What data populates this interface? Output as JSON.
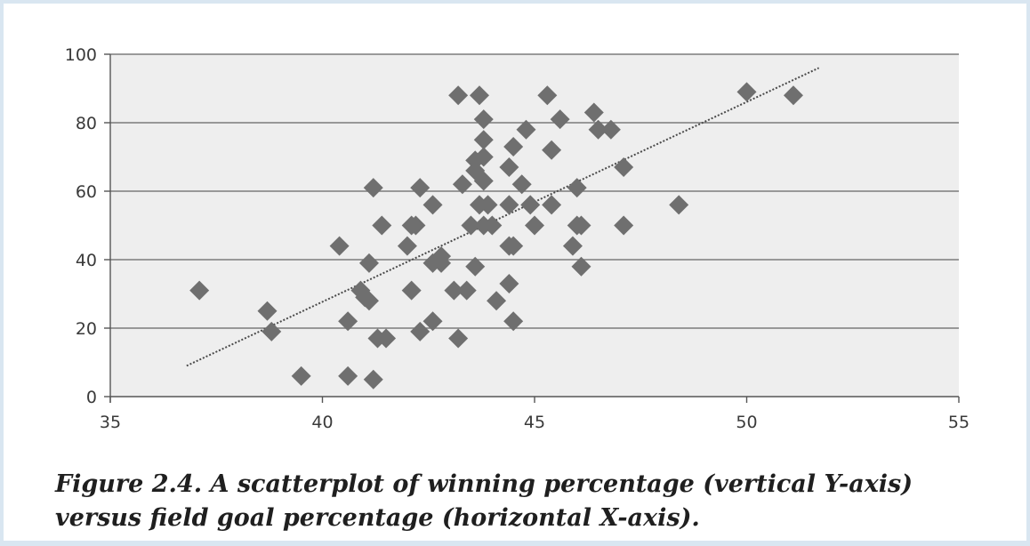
{
  "caption": "Figure 2.4.  A scatterplot of winning percentage (vertical Y-axis) versus field goal percentage (horizontal X-axis).",
  "chart_data": {
    "type": "scatter",
    "xlim": [
      35,
      55
    ],
    "ylim": [
      0,
      100
    ],
    "x_ticks": [
      35,
      40,
      45,
      50,
      55
    ],
    "y_ticks": [
      0,
      20,
      40,
      60,
      80,
      100
    ],
    "grid": "horizontal",
    "colors": {
      "marker": "#6f6f6f",
      "plot_bg": "#eeeeee",
      "grid": "#7b7b7b",
      "trendline": "#4a4a4a"
    },
    "trendline": {
      "x": [
        36.8,
        51.7
      ],
      "y": [
        9,
        96
      ]
    },
    "series": [
      {
        "points": [
          [
            37.1,
            31
          ],
          [
            38.7,
            25
          ],
          [
            38.8,
            19
          ],
          [
            39.5,
            6
          ],
          [
            40.4,
            44
          ],
          [
            40.6,
            22
          ],
          [
            40.6,
            6
          ],
          [
            40.9,
            31
          ],
          [
            41.0,
            29
          ],
          [
            41.1,
            28
          ],
          [
            41.1,
            39
          ],
          [
            41.2,
            61
          ],
          [
            41.2,
            5
          ],
          [
            41.3,
            17
          ],
          [
            41.4,
            50
          ],
          [
            41.5,
            17
          ],
          [
            42.0,
            44
          ],
          [
            42.1,
            50
          ],
          [
            42.1,
            31
          ],
          [
            42.2,
            50
          ],
          [
            42.3,
            61
          ],
          [
            42.3,
            19
          ],
          [
            42.6,
            56
          ],
          [
            42.6,
            22
          ],
          [
            42.6,
            39
          ],
          [
            42.8,
            41
          ],
          [
            42.8,
            39
          ],
          [
            43.1,
            31
          ],
          [
            43.2,
            17
          ],
          [
            43.2,
            88
          ],
          [
            43.3,
            62
          ],
          [
            43.4,
            31
          ],
          [
            43.5,
            50
          ],
          [
            43.6,
            69
          ],
          [
            43.6,
            66
          ],
          [
            43.6,
            38
          ],
          [
            43.7,
            56
          ],
          [
            43.7,
            88
          ],
          [
            43.8,
            50
          ],
          [
            43.8,
            70
          ],
          [
            43.8,
            81
          ],
          [
            43.8,
            75
          ],
          [
            43.8,
            63
          ],
          [
            43.9,
            56
          ],
          [
            44.0,
            50
          ],
          [
            44.1,
            28
          ],
          [
            44.4,
            56
          ],
          [
            44.4,
            67
          ],
          [
            44.4,
            44
          ],
          [
            44.4,
            33
          ],
          [
            44.5,
            73
          ],
          [
            44.5,
            44
          ],
          [
            44.5,
            22
          ],
          [
            44.7,
            62
          ],
          [
            44.8,
            78
          ],
          [
            44.9,
            56
          ],
          [
            45.0,
            50
          ],
          [
            45.3,
            88
          ],
          [
            45.4,
            56
          ],
          [
            45.4,
            72
          ],
          [
            45.6,
            81
          ],
          [
            45.9,
            44
          ],
          [
            46.0,
            61
          ],
          [
            46.0,
            50
          ],
          [
            46.1,
            50
          ],
          [
            46.1,
            38
          ],
          [
            46.4,
            83
          ],
          [
            46.5,
            78
          ],
          [
            46.8,
            78
          ],
          [
            47.1,
            67
          ],
          [
            47.1,
            50
          ],
          [
            48.4,
            56
          ],
          [
            50.0,
            89
          ],
          [
            51.1,
            88
          ]
        ]
      }
    ]
  }
}
